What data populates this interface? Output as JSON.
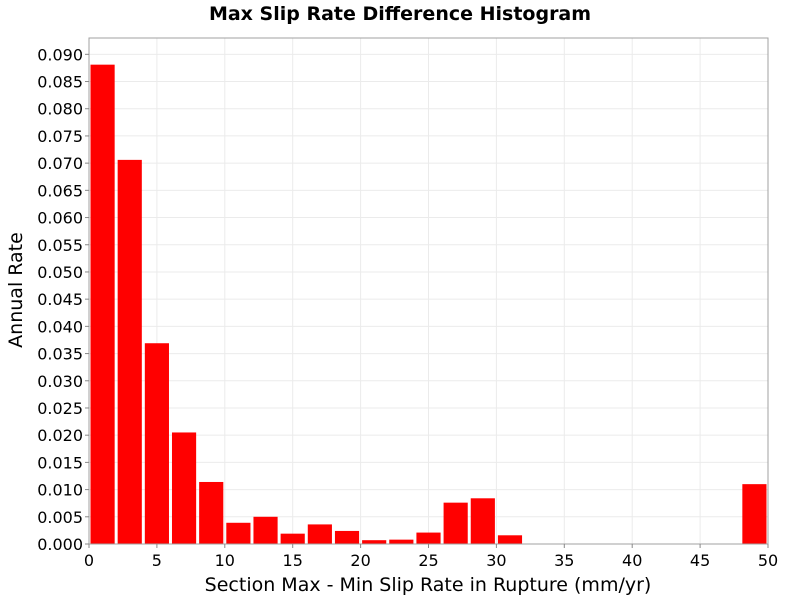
{
  "chart_data": {
    "type": "bar",
    "title": "Max Slip Rate Difference Histogram",
    "xlabel": "Section Max - Min Slip Rate in Rupture (mm/yr)",
    "ylabel": "Annual Rate",
    "xlim": [
      0,
      50
    ],
    "ylim": [
      0,
      0.093
    ],
    "bin_width": 2,
    "grid": true,
    "x_ticks": [
      "0",
      "5",
      "10",
      "15",
      "20",
      "25",
      "30",
      "35",
      "40",
      "45",
      "50"
    ],
    "y_ticks": [
      "0.000",
      "0.005",
      "0.010",
      "0.015",
      "0.020",
      "0.025",
      "0.030",
      "0.035",
      "0.040",
      "0.045",
      "0.050",
      "0.055",
      "0.060",
      "0.065",
      "0.070",
      "0.075",
      "0.080",
      "0.085",
      "0.090"
    ],
    "bar_color": "#ff0000",
    "bins": [
      {
        "x": 1,
        "y": 0.0881
      },
      {
        "x": 3,
        "y": 0.0706
      },
      {
        "x": 5,
        "y": 0.0369
      },
      {
        "x": 7,
        "y": 0.0205
      },
      {
        "x": 9,
        "y": 0.0114
      },
      {
        "x": 11,
        "y": 0.0039
      },
      {
        "x": 13,
        "y": 0.005
      },
      {
        "x": 15,
        "y": 0.0019
      },
      {
        "x": 17,
        "y": 0.0036
      },
      {
        "x": 19,
        "y": 0.0024
      },
      {
        "x": 21,
        "y": 0.0007
      },
      {
        "x": 23,
        "y": 0.0008
      },
      {
        "x": 25,
        "y": 0.0021
      },
      {
        "x": 27,
        "y": 0.0076
      },
      {
        "x": 29,
        "y": 0.0084
      },
      {
        "x": 31,
        "y": 0.0016
      },
      {
        "x": 49,
        "y": 0.011
      }
    ]
  }
}
